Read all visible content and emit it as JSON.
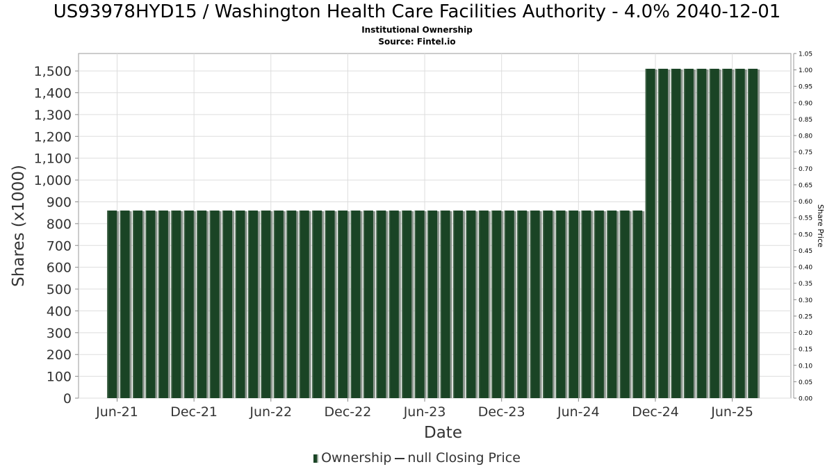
{
  "title": "US93978HYD15 / Washington Health Care Facilities Authority - 4.0% 2040-12-01",
  "subtitle1": "Institutional Ownership",
  "subtitle2": "Source: Fintel.io",
  "legend": {
    "ownership": "Ownership",
    "price": "null Closing Price"
  },
  "colors": {
    "bar": "#1a4425",
    "bar_shadow": "#8c968e",
    "grid": "#dddddd",
    "frame": "#999999",
    "text": "#333333"
  },
  "chart_data": {
    "type": "bar",
    "title": "US93978HYD15 / Washington Health Care Facilities Authority - 4.0% 2040-12-01",
    "xlabel": "Date",
    "ylabel": "Shares (x1000)",
    "y2label": "Share Price",
    "ylim": [
      0,
      1580
    ],
    "y2lim": [
      0,
      1.05
    ],
    "y_ticks": [
      "0",
      "100",
      "200",
      "300",
      "400",
      "500",
      "600",
      "700",
      "800",
      "900",
      "1,000",
      "1,100",
      "1,200",
      "1,300",
      "1,400",
      "1,500"
    ],
    "y2_ticks": [
      "0.00",
      "0.05",
      "0.10",
      "0.15",
      "0.20",
      "0.25",
      "0.30",
      "0.35",
      "0.40",
      "0.45",
      "0.50",
      "0.55",
      "0.60",
      "0.65",
      "0.70",
      "0.75",
      "0.80",
      "0.85",
      "0.90",
      "0.95",
      "1.00",
      "1.05"
    ],
    "x_ticks": [
      "Jun-21",
      "Dec-21",
      "Jun-22",
      "Dec-22",
      "Jun-23",
      "Dec-23",
      "Jun-24",
      "Dec-24",
      "Jun-25"
    ],
    "bar_interval_months": 1,
    "first_bar_month_offset": -0.4,
    "series": [
      {
        "name": "Ownership",
        "values": [
          860,
          860,
          860,
          860,
          860,
          860,
          860,
          860,
          860,
          860,
          860,
          860,
          860,
          860,
          860,
          860,
          860,
          860,
          860,
          860,
          860,
          860,
          860,
          860,
          860,
          860,
          860,
          860,
          860,
          860,
          860,
          860,
          860,
          860,
          860,
          860,
          860,
          860,
          860,
          860,
          860,
          860,
          1510,
          1510,
          1510,
          1510,
          1510,
          1510,
          1510,
          1510,
          1510
        ]
      }
    ]
  }
}
